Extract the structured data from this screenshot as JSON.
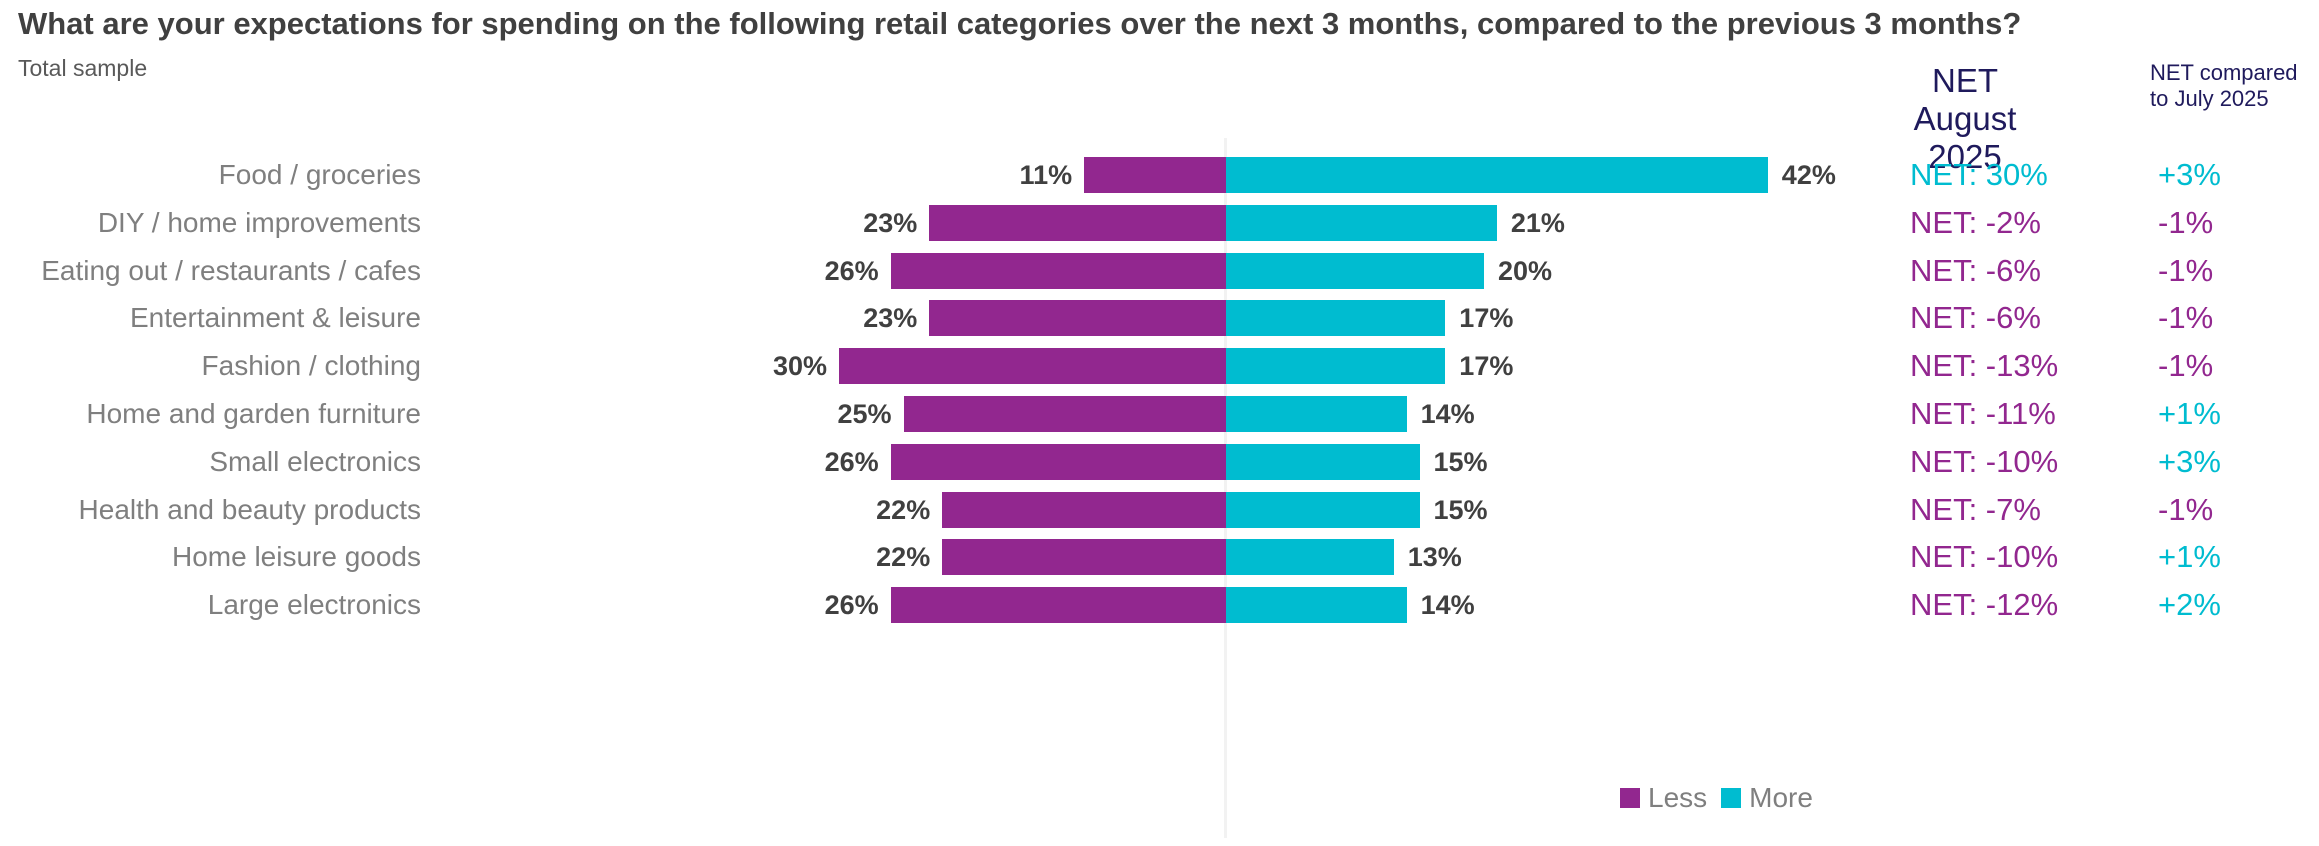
{
  "chart_data": {
    "type": "bar",
    "orientation": "horizontal-diverging",
    "title": "What are your expectations for spending on the following retail categories over the next 3 months, compared to the previous 3 months?",
    "subtitle": "Total sample",
    "categories": [
      "Food / groceries",
      "DIY / home improvements",
      "Eating out / restaurants / cafes",
      "Entertainment & leisure",
      "Fashion / clothing",
      "Home and garden furniture",
      "Small electronics",
      "Health and beauty products",
      "Home leisure goods",
      "Large electronics"
    ],
    "series": [
      {
        "name": "Less",
        "color": "#92278f",
        "values": [
          11,
          23,
          26,
          23,
          30,
          25,
          26,
          22,
          22,
          26
        ],
        "labels": [
          "11%",
          "23%",
          "26%",
          "23%",
          "30%",
          "25%",
          "26%",
          "22%",
          "22%",
          "26%"
        ]
      },
      {
        "name": "More",
        "color": "#00bcd0",
        "values": [
          42,
          21,
          20,
          17,
          17,
          14,
          15,
          15,
          13,
          14
        ],
        "labels": [
          "42%",
          "21%",
          "20%",
          "17%",
          "17%",
          "14%",
          "15%",
          "15%",
          "13%",
          "14%"
        ]
      }
    ],
    "legend": "bottom-right",
    "grid": false,
    "net_header": "NET August 2025",
    "change_header": "NET compared to July 2025",
    "net_labels": [
      "NET: 30%",
      "NET: -2%",
      "NET: -6%",
      "NET: -6%",
      "NET: -13%",
      "NET: -11%",
      "NET: -10%",
      "NET: -7%",
      "NET: -10%",
      "NET: -12%"
    ],
    "net_values": [
      30,
      -2,
      -6,
      -6,
      -13,
      -11,
      -10,
      -7,
      -10,
      -12
    ],
    "change_labels": [
      "+3%",
      "-1%",
      "-1%",
      "-1%",
      "-1%",
      "+1%",
      "+3%",
      "-1%",
      "+1%",
      "+2%"
    ],
    "change_values": [
      3,
      -1,
      -1,
      -1,
      -1,
      1,
      3,
      -1,
      1,
      2
    ],
    "positive_color": "#00bcd0",
    "negative_color": "#92278f"
  }
}
